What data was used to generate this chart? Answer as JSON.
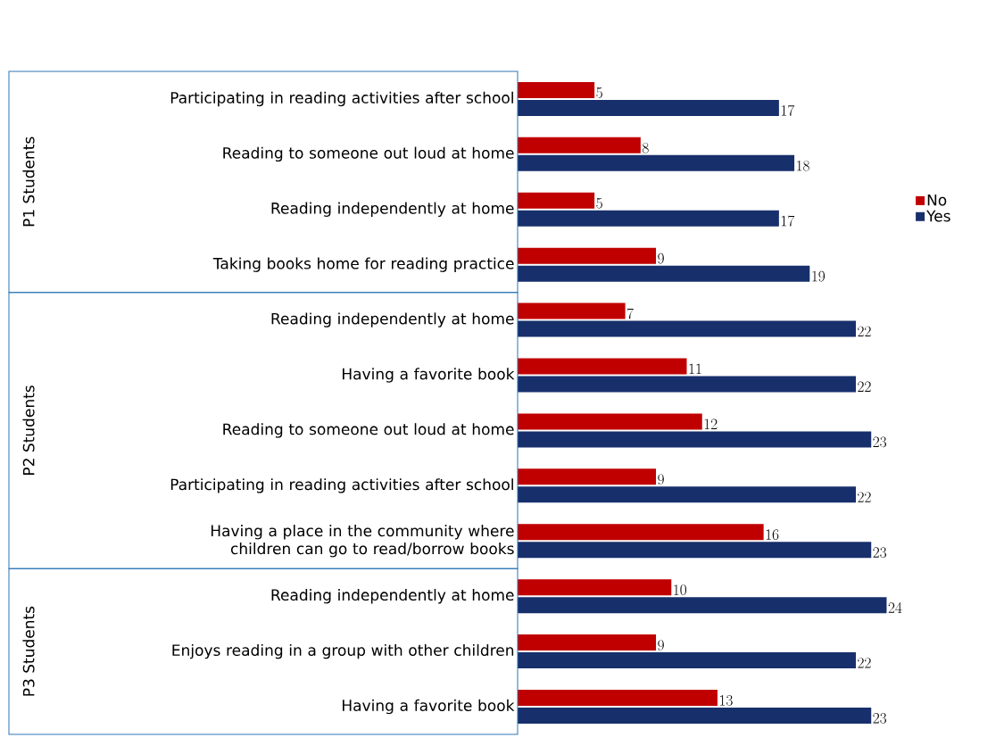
{
  "chart_data": {
    "type": "bar",
    "orientation": "horizontal",
    "data_labels": true,
    "legend": "right",
    "categories": [
      "Participating in reading activities after school",
      "Reading to someone out loud at home",
      "Reading independently at home",
      "Taking books home for reading practice",
      "Reading independently at home",
      "Having a favorite book",
      "Reading to someone out loud at home",
      "Participating in reading activities after school",
      "Having a place in the community where children can go to read/borrow books",
      "Reading independently at home",
      "Enjoys reading in a group with other children",
      "Having a favorite book"
    ],
    "series": [
      {
        "name": "No",
        "color": "#c00000",
        "values": [
          5,
          8,
          5,
          9,
          7,
          11,
          12,
          9,
          16,
          10,
          9,
          13
        ]
      },
      {
        "name": "Yes",
        "color": "#172f6b",
        "values": [
          17,
          18,
          17,
          19,
          22,
          22,
          23,
          22,
          23,
          24,
          22,
          23
        ]
      }
    ],
    "annotations": [
      "P1 Students",
      "P2 Students",
      "P3 Students"
    ]
  }
}
